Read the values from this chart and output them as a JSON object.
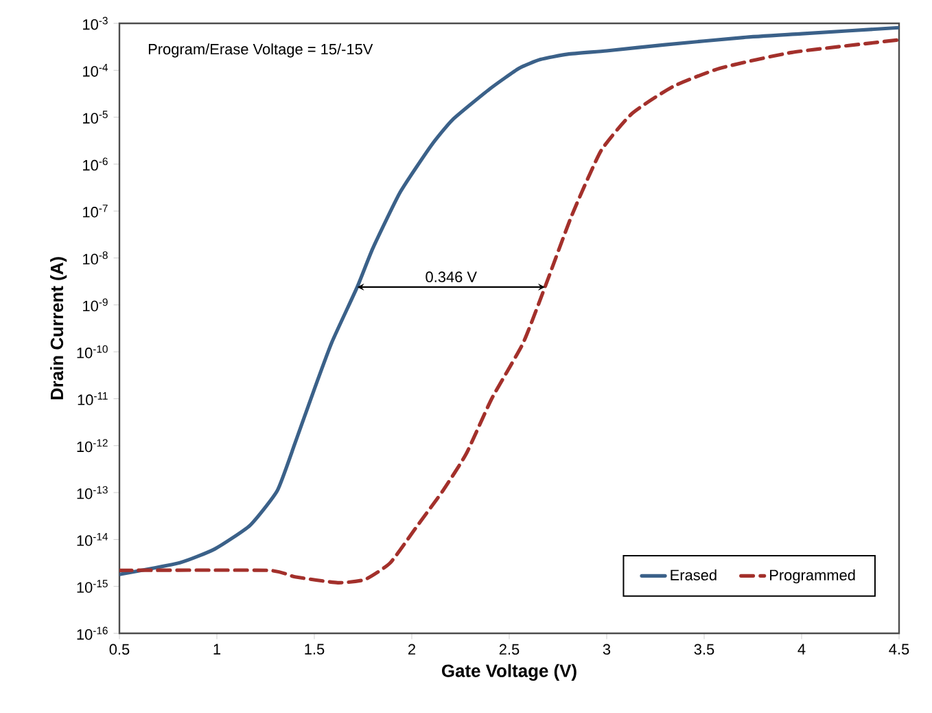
{
  "chart_data": {
    "type": "line",
    "xlabel": "Gate Voltage (V)",
    "ylabel": "Drain Current (A)",
    "annotations": [
      "Program/Erase Voltage = 15/-15V",
      "0.346 V"
    ],
    "series": [
      {
        "name": "Erased",
        "color": "#3b6189",
        "line_style": "solid",
        "x": [
          0.5,
          0.81,
          0.99,
          1.17,
          1.31,
          1.4,
          1.5,
          1.59,
          1.72,
          1.8,
          1.94,
          2.1,
          2.21,
          2.4,
          2.55,
          2.66,
          2.8,
          3.0,
          3.3,
          3.7,
          4.0,
          4.5
        ],
        "values": [
          1.8e-15,
          3.2e-15,
          6.3e-15,
          2e-14,
          1.1e-13,
          1.1e-12,
          1.6e-11,
          1.6e-10,
          2.4e-09,
          1.6e-08,
          2.5e-07,
          2.5e-06,
          8.9e-06,
          4e-05,
          0.00011,
          0.00017,
          0.00022,
          0.00026,
          0.00035,
          0.0005,
          0.0006,
          0.00081
        ]
      },
      {
        "name": "Programmed",
        "color": "#a3302b",
        "line_style": "dashed",
        "x": [
          0.5,
          1.26,
          1.4,
          1.62,
          1.76,
          1.89,
          2.03,
          2.16,
          2.28,
          2.41,
          2.57,
          2.68,
          2.82,
          2.97,
          3.13,
          3.34,
          3.58,
          3.95,
          4.49
        ],
        "values": [
          2.2e-15,
          2.2e-15,
          1.6e-15,
          1.2e-15,
          1.4e-15,
          3.2e-15,
          2e-14,
          1.1e-13,
          6.8e-13,
          1e-11,
          1.5e-10,
          2.2e-09,
          7.9e-08,
          1.9e-06,
          1.2e-05,
          4.5e-05,
          0.00011,
          0.00024,
          0.00044
        ]
      }
    ],
    "log": "y",
    "xlim": [
      0.5,
      4.5
    ],
    "ylim": [
      1e-16,
      0.001
    ],
    "xticks": [
      0.5,
      1,
      1.5,
      2,
      2.5,
      3,
      3.5,
      4,
      4.5
    ],
    "yticks": [
      {
        "value": 1e-16,
        "label": "10$^{-16}$"
      },
      {
        "value": 1e-15,
        "label": "10$^{-15}$"
      },
      {
        "value": 1e-14,
        "label": "10$^{-14}$"
      },
      {
        "value": 1e-13,
        "label": "10$^{-13}$"
      },
      {
        "value": 1e-12,
        "label": "10$^{-12}$"
      },
      {
        "value": 1e-11,
        "label": "10$^{-11}$"
      },
      {
        "value": 1e-10,
        "label": "10$^{-10}$"
      },
      {
        "value": 1e-09,
        "label": "10$^{-9}$"
      },
      {
        "value": 1e-08,
        "label": "10$^{-8}$"
      },
      {
        "value": 1e-07,
        "label": "10$^{-7}$"
      },
      {
        "value": 1e-06,
        "label": "10$^{-6}$"
      },
      {
        "value": 1e-05,
        "label": "10$^{-5}$"
      },
      {
        "value": 0.0001,
        "label": "10$^{-4}$"
      },
      {
        "value": 0.001,
        "label": "10$^{-3}$"
      }
    ],
    "grid": false,
    "legend": "bottom right",
    "marker": "none"
  }
}
